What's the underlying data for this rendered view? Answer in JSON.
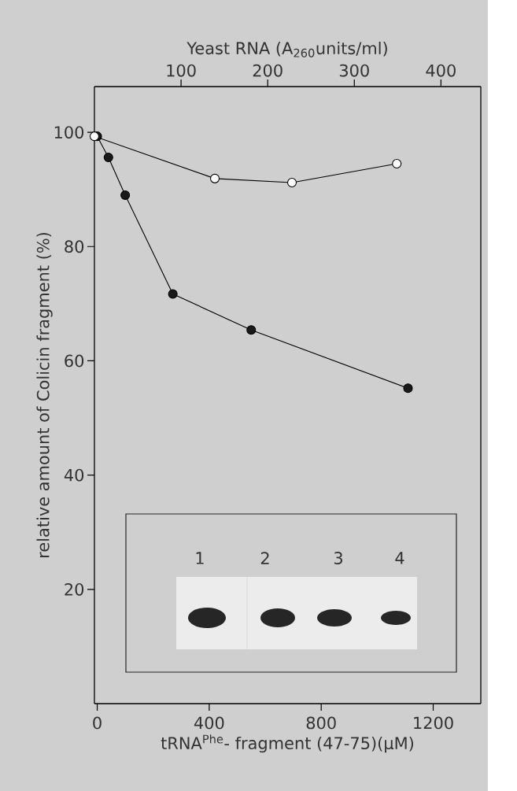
{
  "chart_data": {
    "type": "line",
    "xlabel": "tRNA$^{Phe}$- fragment (47-75)(µM)",
    "x2label": "Yeast RNA (A$_{260}$units/ml)",
    "ylabel": "relative amount of Colicin fragment (%)",
    "xlim": [
      -10,
      1370
    ],
    "xticks": [
      0,
      400,
      800,
      1200
    ],
    "x2lim": [
      0,
      446
    ],
    "x2ticks": [
      100,
      200,
      300,
      400
    ],
    "ylim": [
      0,
      108
    ],
    "yticks": [
      20,
      40,
      60,
      80,
      100
    ],
    "marker": "circle",
    "grid": false,
    "series": [
      {
        "color": "#1a1a1a",
        "x": [
          0,
          40,
          100,
          270,
          550,
          1110
        ],
        "values": [
          99.3,
          95.6,
          89.0,
          71.7,
          65.4,
          55.2
        ]
      },
      {
        "color": "#ffffff",
        "axis": "x2",
        "x": [
          0,
          139,
          228,
          349
        ],
        "values": [
          99.3,
          91.9,
          91.2,
          94.5
        ]
      }
    ],
    "annotations": [
      "1",
      "2",
      "3",
      "4"
    ]
  }
}
